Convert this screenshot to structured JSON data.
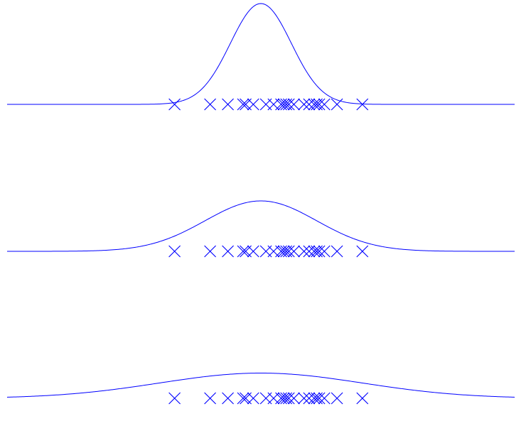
{
  "chart_data": [
    {
      "type": "line",
      "title": "",
      "xlabel": "",
      "ylabel": "",
      "grid": false,
      "legend": "none",
      "xlim": [
        -5,
        5
      ],
      "series": [
        {
          "kind": "density",
          "mean": 0.0,
          "sd": 0.6,
          "peak": 1.0
        },
        {
          "kind": "samples",
          "values": [
            -1.7,
            -1.0,
            -0.65,
            -0.35,
            -0.3,
            -0.15,
            0.1,
            0.25,
            0.4,
            0.45,
            0.5,
            0.55,
            0.65,
            0.85,
            0.95,
            1.05,
            1.1,
            1.15,
            1.25,
            1.5,
            2.0
          ]
        }
      ]
    },
    {
      "type": "line",
      "title": "",
      "xlabel": "",
      "ylabel": "",
      "grid": false,
      "legend": "none",
      "xlim": [
        -5,
        5
      ],
      "series": [
        {
          "kind": "density",
          "mean": 0.0,
          "sd": 1.1,
          "peak": 0.5
        },
        {
          "kind": "samples",
          "values": [
            -1.7,
            -1.0,
            -0.65,
            -0.35,
            -0.3,
            -0.15,
            0.1,
            0.25,
            0.4,
            0.45,
            0.5,
            0.55,
            0.65,
            0.85,
            0.95,
            1.05,
            1.1,
            1.15,
            1.25,
            1.5,
            2.0
          ]
        }
      ]
    },
    {
      "type": "line",
      "title": "",
      "xlabel": "",
      "ylabel": "",
      "grid": false,
      "legend": "none",
      "xlim": [
        -5,
        5
      ],
      "series": [
        {
          "kind": "density",
          "mean": 0.0,
          "sd": 2.0,
          "peak": 0.25
        },
        {
          "kind": "samples",
          "values": [
            -1.7,
            -1.0,
            -0.65,
            -0.35,
            -0.3,
            -0.15,
            0.1,
            0.25,
            0.4,
            0.45,
            0.5,
            0.55,
            0.65,
            0.85,
            0.95,
            1.05,
            1.1,
            1.15,
            1.25,
            1.5,
            2.0
          ]
        }
      ]
    }
  ],
  "colors": {
    "line": "#0000ff",
    "marker": "#0000ff",
    "background": "#ffffff"
  }
}
